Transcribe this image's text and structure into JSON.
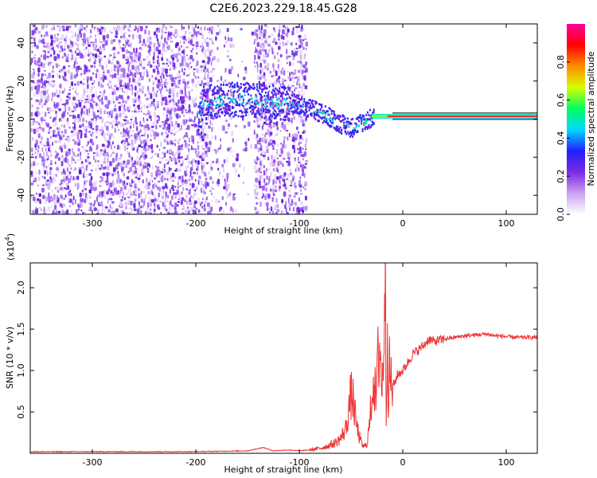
{
  "title": "C2E6.2023.229.18.45.G28",
  "chart_data": [
    {
      "type": "heatmap",
      "xlabel": "Height of straight line (km)",
      "ylabel": "Frequency (Hz)",
      "xlim": [
        -360,
        130
      ],
      "ylim": [
        -50,
        50
      ],
      "x_ticks": [
        -300,
        -200,
        -100,
        0,
        100
      ],
      "x_tick_labels": [
        "-300",
        "-200",
        "-100",
        "0",
        "100"
      ],
      "y_ticks": [
        -40,
        -20,
        0,
        20,
        40
      ],
      "y_tick_labels": [
        "-40",
        "-20",
        "0",
        "20",
        "40"
      ],
      "signal_track": {
        "x": [
          -195,
          -180,
          -160,
          -140,
          -120,
          -100,
          -90,
          -80,
          -70,
          -60,
          -50,
          -40,
          -30,
          -20,
          0,
          50,
          100,
          130
        ],
        "frequency": [
          9,
          10,
          11,
          10,
          9,
          8,
          6,
          4,
          1,
          -2,
          -4,
          -1,
          1,
          1,
          1.5,
          1.5,
          1.5,
          1.5
        ]
      },
      "colorbar": {
        "label": "Normalized spectral amplitude",
        "range": [
          0.0,
          1.0
        ],
        "ticks": [
          0.0,
          0.2,
          0.4,
          0.6,
          0.8
        ],
        "tick_labels": [
          "0.0",
          "0.2",
          "0.4",
          "0.6",
          "0.8"
        ],
        "colors": [
          "#ffffff",
          "#c8a0f0",
          "#7a2ae0",
          "#2020ff",
          "#00d8ff",
          "#00ff60",
          "#d8ff00",
          "#ff8c00",
          "#ff0000",
          "#ff00a0"
        ]
      }
    },
    {
      "type": "line",
      "xlabel": "Height of straight line (km)",
      "ylabel": "SNR (10 * v/v)",
      "scale_label": "(x10",
      "scale_exponent": "4",
      "scale_suffix": ")",
      "xlim": [
        -360,
        130
      ],
      "ylim": [
        0,
        2.3
      ],
      "x_ticks": [
        -300,
        -200,
        -100,
        0,
        100
      ],
      "x_tick_labels": [
        "-300",
        "-200",
        "-100",
        "0",
        "100"
      ],
      "y_ticks": [
        0.5,
        1.0,
        1.5,
        2.0
      ],
      "y_tick_labels": [
        "0.5",
        "1.0",
        "1.5",
        "2.0"
      ],
      "color": "#ee3333",
      "series": [
        {
          "x": [
            -360,
            -300,
            -250,
            -200,
            -150,
            -135,
            -125,
            -110,
            -100,
            -90,
            -80,
            -75,
            -70,
            -65,
            -60,
            -55,
            -52,
            -50,
            -48,
            -45,
            -42,
            -40,
            -38,
            -35,
            -32,
            -30,
            -28,
            -26,
            -24,
            -22,
            -20,
            -18,
            -17,
            -16,
            -15,
            -14,
            -13,
            -12,
            -10,
            -8,
            -5,
            0,
            5,
            10,
            15,
            20,
            25,
            30,
            40,
            50,
            60,
            70,
            80,
            90,
            100,
            110,
            120,
            130
          ],
          "y": [
            0.02,
            0.02,
            0.02,
            0.02,
            0.03,
            0.07,
            0.03,
            0.04,
            0.03,
            0.04,
            0.06,
            0.08,
            0.1,
            0.13,
            0.18,
            0.3,
            0.55,
            0.7,
            0.65,
            0.35,
            0.2,
            0.12,
            0.08,
            0.1,
            0.35,
            0.7,
            0.95,
            0.6,
            1.1,
            1.35,
            0.7,
            1.6,
            2.25,
            0.5,
            1.5,
            0.75,
            1.0,
            0.9,
            0.8,
            0.85,
            0.95,
            1.0,
            1.1,
            1.2,
            1.25,
            1.3,
            1.38,
            1.35,
            1.38,
            1.4,
            1.42,
            1.43,
            1.44,
            1.42,
            1.41,
            1.4,
            1.4,
            1.4
          ]
        }
      ]
    }
  ]
}
